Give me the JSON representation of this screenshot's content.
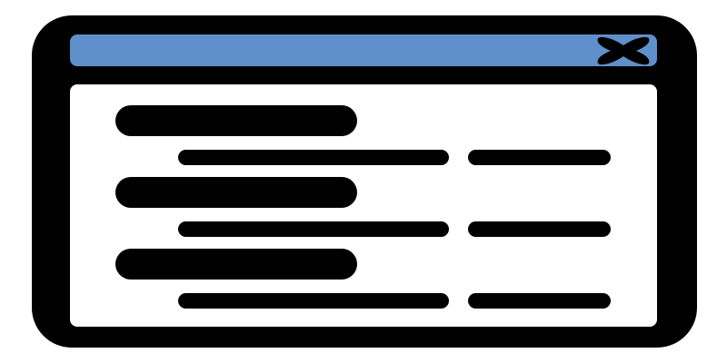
{
  "window": {
    "frame_color": "#000000",
    "titlebar_color": "#5f90cc",
    "content_color": "#ffffff",
    "close_icon": "close-x-icon",
    "rows": [
      {
        "heading_placeholder": "text-bar",
        "detail_placeholders": [
          "text-bar",
          "text-bar"
        ]
      },
      {
        "heading_placeholder": "text-bar",
        "detail_placeholders": [
          "text-bar",
          "text-bar"
        ]
      },
      {
        "heading_placeholder": "text-bar",
        "detail_placeholders": [
          "text-bar",
          "text-bar"
        ]
      }
    ]
  }
}
